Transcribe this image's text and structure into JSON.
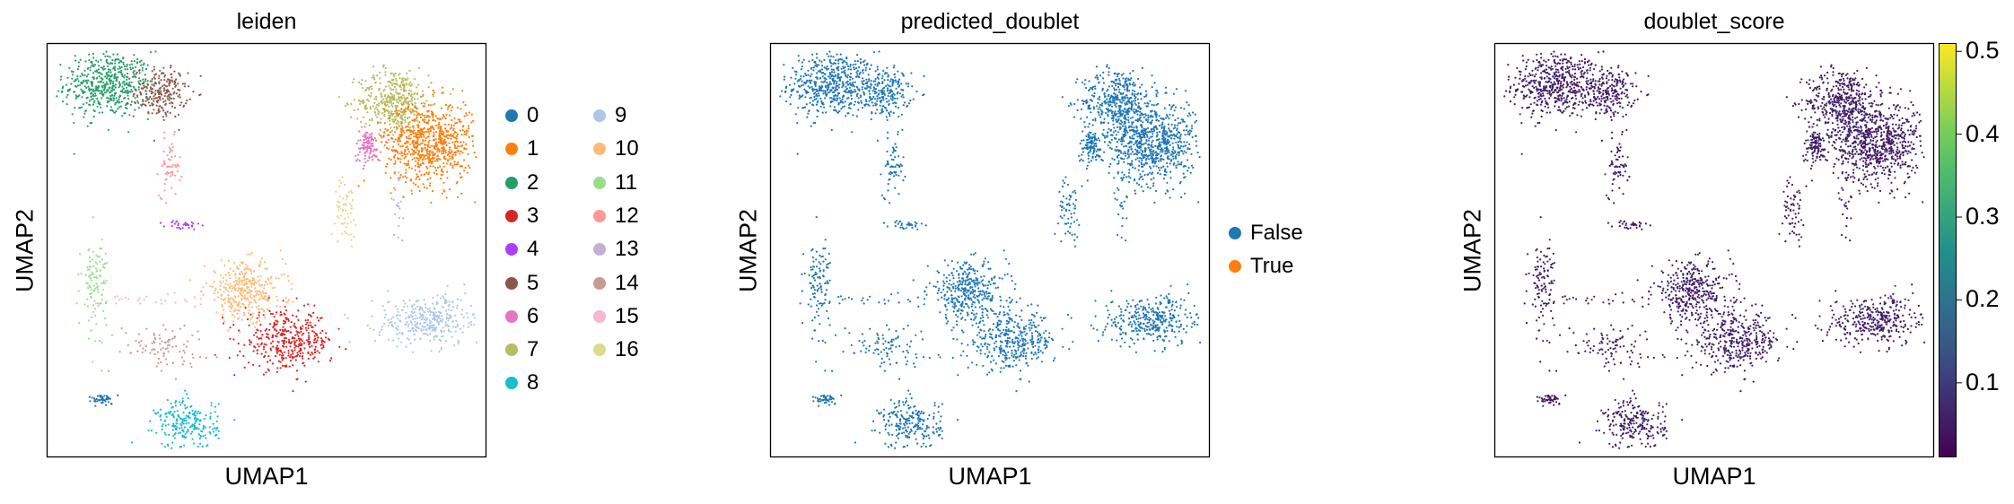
{
  "chart_data": [
    {
      "type": "scatter",
      "title": "leiden",
      "xlabel": "UMAP1",
      "ylabel": "UMAP2",
      "legend_position": "right",
      "legend": [
        {
          "label": "0",
          "color": "#1f77b4"
        },
        {
          "label": "1",
          "color": "#ff7f0e"
        },
        {
          "label": "2",
          "color": "#279e68"
        },
        {
          "label": "3",
          "color": "#d62728"
        },
        {
          "label": "4",
          "color": "#aa40fc"
        },
        {
          "label": "5",
          "color": "#8c564b"
        },
        {
          "label": "6",
          "color": "#e377c2"
        },
        {
          "label": "7",
          "color": "#b5bd61"
        },
        {
          "label": "8",
          "color": "#17becf"
        },
        {
          "label": "9",
          "color": "#aec7e8"
        },
        {
          "label": "10",
          "color": "#ffbb78"
        },
        {
          "label": "11",
          "color": "#98df8a"
        },
        {
          "label": "12",
          "color": "#ff9896"
        },
        {
          "label": "13",
          "color": "#c5b0d5"
        },
        {
          "label": "14",
          "color": "#c49c94"
        },
        {
          "label": "15",
          "color": "#f7b6d2"
        },
        {
          "label": "16",
          "color": "#dbdb8d"
        }
      ],
      "clusters": [
        {
          "label": "2",
          "cx": 0.14,
          "cy": 0.9,
          "sx": 0.05,
          "sy": 0.04,
          "n": 520
        },
        {
          "label": "5",
          "cx": 0.26,
          "cy": 0.88,
          "sx": 0.03,
          "sy": 0.03,
          "n": 220
        },
        {
          "label": "12",
          "cx": 0.28,
          "cy": 0.7,
          "sx": 0.012,
          "sy": 0.035,
          "n": 60
        },
        {
          "label": "4",
          "cx": 0.31,
          "cy": 0.56,
          "sx": 0.02,
          "sy": 0.006,
          "n": 30
        },
        {
          "label": "7",
          "cx": 0.79,
          "cy": 0.86,
          "sx": 0.04,
          "sy": 0.04,
          "n": 420
        },
        {
          "label": "1",
          "cx": 0.87,
          "cy": 0.76,
          "sx": 0.05,
          "sy": 0.05,
          "n": 760
        },
        {
          "label": "6",
          "cx": 0.73,
          "cy": 0.75,
          "sx": 0.015,
          "sy": 0.02,
          "n": 110
        },
        {
          "label": "16",
          "cx": 0.68,
          "cy": 0.6,
          "sx": 0.012,
          "sy": 0.035,
          "n": 60
        },
        {
          "label": "9",
          "cx": 0.87,
          "cy": 0.33,
          "sx": 0.06,
          "sy": 0.03,
          "n": 360
        },
        {
          "label": "10",
          "cx": 0.45,
          "cy": 0.4,
          "sx": 0.045,
          "sy": 0.035,
          "n": 360
        },
        {
          "label": "3",
          "cx": 0.55,
          "cy": 0.28,
          "sx": 0.05,
          "sy": 0.035,
          "n": 380
        },
        {
          "label": "11",
          "cx": 0.11,
          "cy": 0.42,
          "sx": 0.015,
          "sy": 0.06,
          "n": 110
        },
        {
          "label": "14",
          "cx": 0.26,
          "cy": 0.27,
          "sx": 0.05,
          "sy": 0.025,
          "n": 90
        },
        {
          "label": "15",
          "cx": 0.22,
          "cy": 0.38,
          "sx": 0.05,
          "sy": 0.01,
          "n": 25
        },
        {
          "label": "0",
          "cx": 0.13,
          "cy": 0.14,
          "sx": 0.015,
          "sy": 0.006,
          "n": 45
        },
        {
          "label": "8",
          "cx": 0.32,
          "cy": 0.08,
          "sx": 0.035,
          "sy": 0.03,
          "n": 220
        },
        {
          "label": "13",
          "cx": 0.8,
          "cy": 0.6,
          "sx": 0.01,
          "sy": 0.04,
          "n": 20
        }
      ]
    },
    {
      "type": "scatter",
      "title": "predicted_doublet",
      "xlabel": "UMAP1",
      "ylabel": "UMAP2",
      "legend_position": "right",
      "legend": [
        {
          "label": "False",
          "color": "#1f77b4"
        },
        {
          "label": "True",
          "color": "#ff7f0e"
        }
      ]
    },
    {
      "type": "scatter",
      "title": "doublet_score",
      "xlabel": "UMAP1",
      "ylabel": "UMAP2",
      "colormap": "viridis",
      "colorbar_range": [
        0.01,
        0.51
      ],
      "colorbar_ticks": [
        "0.1",
        "0.2",
        "0.3",
        "0.4",
        "0.5"
      ],
      "colorbar_tick_values": [
        0.1,
        0.2,
        0.3,
        0.4,
        0.5
      ]
    }
  ]
}
